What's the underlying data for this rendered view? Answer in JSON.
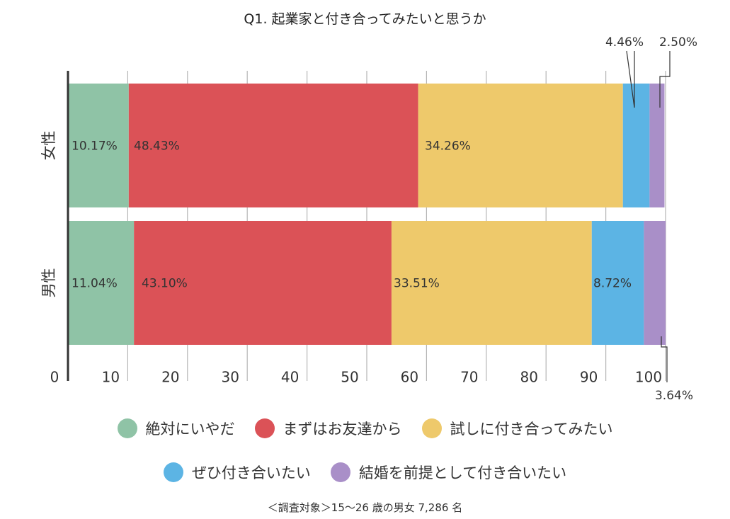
{
  "colors": {
    "absolutely_not": "#8fc3a6",
    "friends_first": "#db5257",
    "try_dating": "#eec96b",
    "definitely": "#5cb4e4",
    "marriage": "#a98fc8"
  },
  "chart_data": {
    "type": "bar",
    "orientation": "horizontal-stacked",
    "title": "Q1. 起業家と付き合ってみたいと思うか",
    "categories": [
      "女性",
      "男性"
    ],
    "xlim": [
      0,
      100
    ],
    "x_ticks": [
      "0",
      "10",
      "20",
      "30",
      "40",
      "50",
      "60",
      "70",
      "80",
      "90",
      "100"
    ],
    "grid": true,
    "series": [
      {
        "name": "絶対にいやだ",
        "color": "#8fc3a6",
        "values": [
          10.17,
          11.04
        ],
        "labels": [
          "10.17%",
          "11.04%"
        ]
      },
      {
        "name": "まずはお友達から",
        "color": "#db5257",
        "values": [
          48.43,
          43.1
        ],
        "labels": [
          "48.43%",
          "43.10%"
        ]
      },
      {
        "name": "試しに付き合ってみたい",
        "color": "#eec96b",
        "values": [
          34.26,
          33.51
        ],
        "labels": [
          "34.26%",
          "33.51%"
        ]
      },
      {
        "name": "ぜひ付き合いたい",
        "color": "#5cb4e4",
        "values": [
          4.46,
          8.72
        ],
        "labels": [
          "4.46%",
          "8.72%"
        ]
      },
      {
        "name": "結婚を前提として付き合いたい",
        "color": "#a98fc8",
        "values": [
          2.5,
          3.64
        ],
        "labels": [
          "2.50%",
          "3.64%"
        ]
      }
    ],
    "legend_placement": "bottom",
    "footnote": "＜調査対象＞15〜26 歳の男女 7,286 名"
  }
}
